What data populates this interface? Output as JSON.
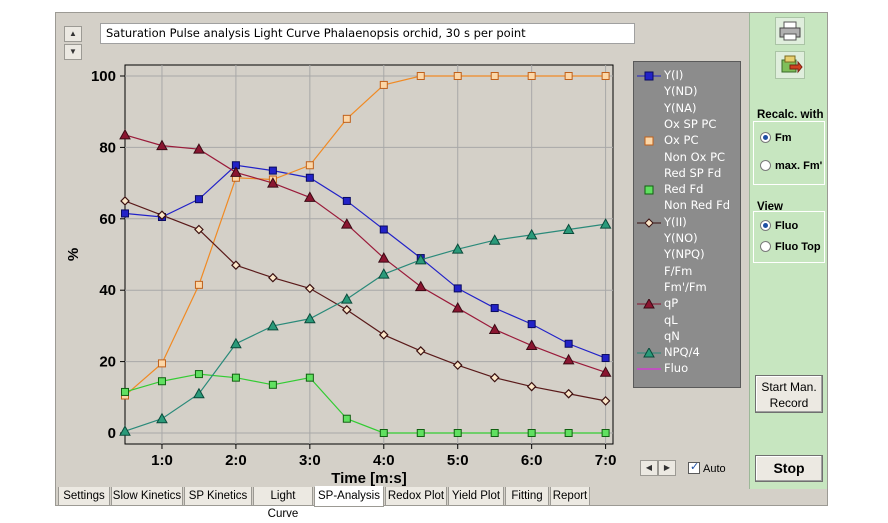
{
  "plot_title": "Saturation Pulse analysis Light Curve Phalaenopsis orchid, 30 s per point",
  "chart_data": {
    "type": "line",
    "xlabel": "Time [m:s]",
    "ylabel": "%",
    "xlim": [
      0.5,
      7.1
    ],
    "ylim": [
      0,
      100
    ],
    "x_ticks": [
      {
        "v": 1,
        "label": "1:0"
      },
      {
        "v": 2,
        "label": "2:0"
      },
      {
        "v": 3,
        "label": "3:0"
      },
      {
        "v": 4,
        "label": "4:0"
      },
      {
        "v": 5,
        "label": "5:0"
      },
      {
        "v": 6,
        "label": "6:0"
      },
      {
        "v": 7,
        "label": "7:0"
      }
    ],
    "y_ticks": [
      0,
      20,
      40,
      60,
      80,
      100
    ],
    "x": [
      0.5,
      1.0,
      1.5,
      2.0,
      2.5,
      3.0,
      3.5,
      4.0,
      4.5,
      5.0,
      5.5,
      6.0,
      6.5,
      7.0
    ],
    "series": [
      {
        "name": "Y(I)",
        "color": "#2222c8",
        "marker": "square-filled",
        "values": [
          61.5,
          60.5,
          65.5,
          75,
          73.5,
          71.5,
          65,
          57,
          49,
          40.5,
          35,
          30.5,
          25,
          21
        ]
      },
      {
        "name": "Ox PC",
        "color": "#f08a24",
        "marker": "square-hollow",
        "values": [
          10.5,
          19.5,
          41.5,
          71.5,
          71,
          75,
          88,
          97.5,
          100,
          100,
          100,
          100,
          100,
          100
        ]
      },
      {
        "name": "Red Fd",
        "color": "#33cc33",
        "marker": "square-filled-green",
        "values": [
          11.5,
          14.5,
          16.5,
          15.5,
          13.5,
          15.5,
          4,
          0,
          0,
          0,
          0,
          0,
          0,
          0
        ]
      },
      {
        "name": "Y(II)",
        "color": "#5a1a1a",
        "marker": "diamond",
        "values": [
          65,
          61,
          57,
          47,
          43.5,
          40.5,
          34.5,
          27.5,
          23,
          19,
          15.5,
          13,
          11,
          9
        ]
      },
      {
        "name": "qP",
        "color": "#9a1a3a",
        "marker": "triangle",
        "values": [
          83.5,
          80.5,
          79.5,
          73,
          70,
          66,
          58.5,
          49,
          41,
          35,
          29,
          24.5,
          20.5,
          17
        ]
      },
      {
        "name": "NPQ/4",
        "color": "#2a8a7a",
        "marker": "triangle-teal",
        "values": [
          0.5,
          4,
          11,
          25,
          30,
          32,
          37.5,
          44.5,
          48.5,
          51.5,
          54,
          55.5,
          57,
          58.5
        ]
      }
    ]
  },
  "legend": {
    "items": [
      {
        "label": "Y(I)",
        "marker": "blue-square-line"
      },
      {
        "label": "Y(ND)",
        "marker": "none"
      },
      {
        "label": "Y(NA)",
        "marker": "none"
      },
      {
        "label": "Ox SP PC",
        "marker": "none"
      },
      {
        "label": "Ox PC",
        "marker": "orange-square"
      },
      {
        "label": "Non Ox PC",
        "marker": "none"
      },
      {
        "label": "Red SP Fd",
        "marker": "none"
      },
      {
        "label": "Red Fd",
        "marker": "green-square"
      },
      {
        "label": "Non Red Fd",
        "marker": "none"
      },
      {
        "label": "Y(II)",
        "marker": "brown-diamond-line"
      },
      {
        "label": "Y(NO)",
        "marker": "none"
      },
      {
        "label": "Y(NPQ)",
        "marker": "none"
      },
      {
        "label": "F/Fm",
        "marker": "none"
      },
      {
        "label": "Fm'/Fm",
        "marker": "none"
      },
      {
        "label": "qP",
        "marker": "maroon-triangle-line"
      },
      {
        "label": "qL",
        "marker": "none"
      },
      {
        "label": "qN",
        "marker": "none"
      },
      {
        "label": "NPQ/4",
        "marker": "teal-triangle-line"
      },
      {
        "label": "Fluo",
        "marker": "magenta-line"
      }
    ]
  },
  "right_panel": {
    "recalc_title": "Recalc. with",
    "recalc_options": [
      {
        "label": "Fm",
        "selected": true
      },
      {
        "label": "max. Fm'",
        "selected": false
      }
    ],
    "view_title": "View",
    "view_options": [
      {
        "label": "Fluo",
        "selected": true
      },
      {
        "label": "Fluo Top",
        "selected": false
      }
    ],
    "start_label": "Start Man. Record",
    "stop_label": "Stop",
    "icons": [
      "printer-icon",
      "export-icon"
    ]
  },
  "auto_label": "Auto",
  "auto_checked": true,
  "tabs": [
    {
      "label": "Settings",
      "active": false
    },
    {
      "label": "Slow Kinetics",
      "active": false
    },
    {
      "label": "SP Kinetics",
      "active": false
    },
    {
      "label": "Light Curve",
      "active": false
    },
    {
      "label": "SP-Analysis",
      "active": true
    },
    {
      "label": "Redox Plot",
      "active": false
    },
    {
      "label": "Yield Plot",
      "active": false
    },
    {
      "label": "Fitting",
      "active": false
    },
    {
      "label": "Report",
      "active": false
    }
  ]
}
